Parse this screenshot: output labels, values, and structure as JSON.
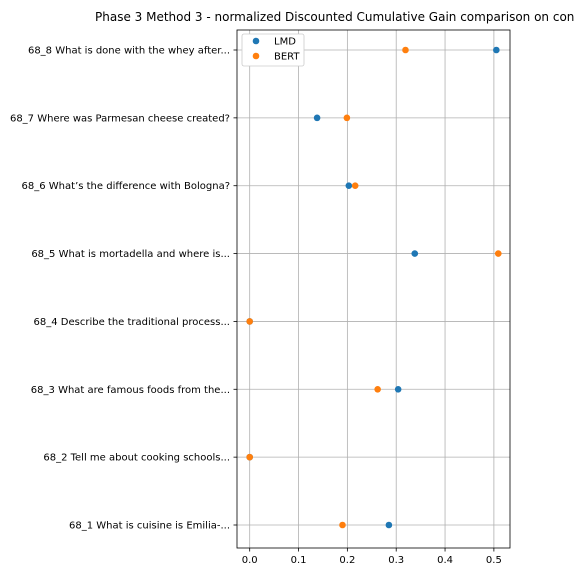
{
  "chart_data": {
    "type": "scatter",
    "title": "Phase 3 Method 3 - normalized Discounted Cumulative Gain comparison on con",
    "xlabel": "",
    "ylabel": "",
    "xlim": [
      -0.026,
      0.533
    ],
    "xticks": [
      0.0,
      0.1,
      0.2,
      0.3,
      0.4,
      0.5
    ],
    "xtick_labels": [
      "0.0",
      "0.1",
      "0.2",
      "0.3",
      "0.4",
      "0.5"
    ],
    "categories": [
      "68_1 What is cuisine is Emilia-...",
      "68_2 Tell me about cooking schools...",
      "68_3 What are famous foods from the...",
      "68_4 Describe the traditional process...",
      "68_5 What is mortadella and where is...",
      "68_6 What’s the difference with Bologna?",
      "68_7 Where was Parmesan cheese created?",
      "68_8 What is done with the whey after..."
    ],
    "series": [
      {
        "name": "LMD",
        "color": "#1f77b4",
        "values": [
          0.285,
          0.0,
          0.304,
          0.0,
          0.338,
          0.203,
          0.138,
          0.505
        ]
      },
      {
        "name": "BERT",
        "color": "#ff7f0e",
        "values": [
          0.19,
          0.0,
          0.262,
          0.0,
          0.509,
          0.216,
          0.199,
          0.319
        ]
      }
    ],
    "grid": true,
    "legend_position": "upper-left"
  }
}
